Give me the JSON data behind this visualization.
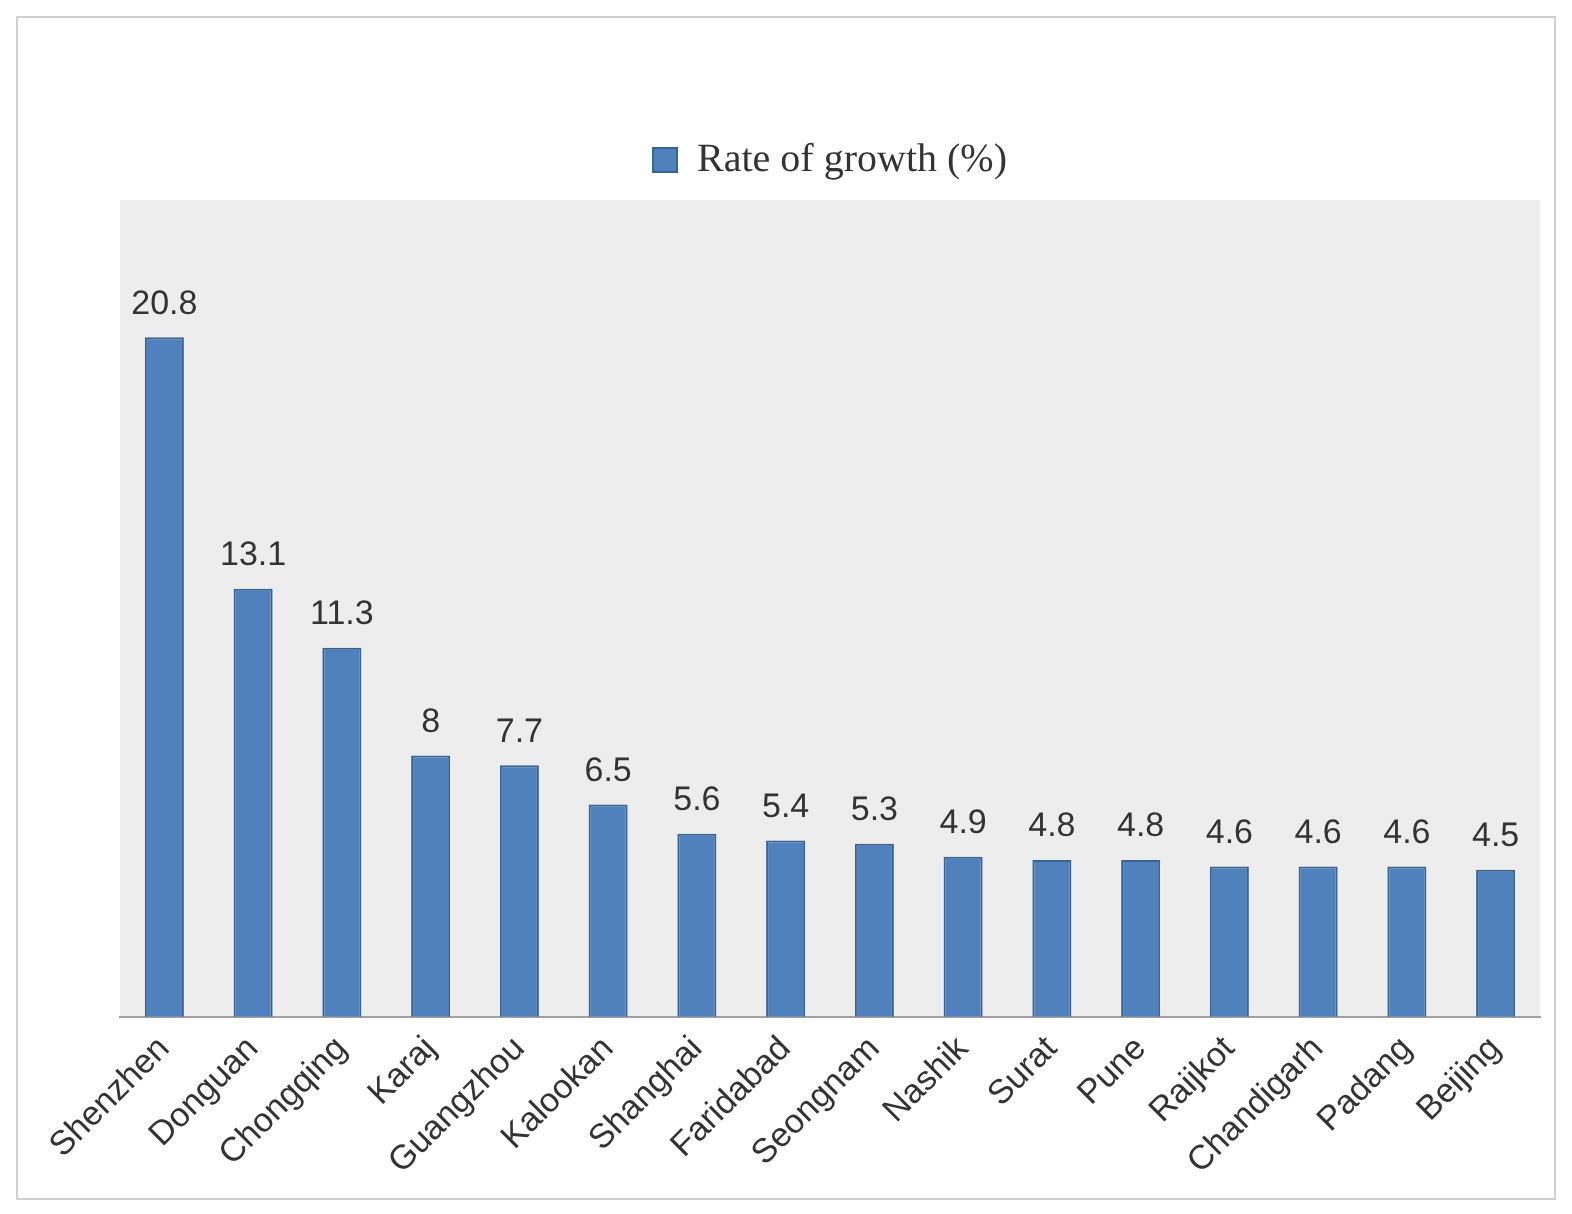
{
  "chart_data": {
    "type": "bar",
    "categories": [
      "Shenzhen",
      "Donguan",
      "Chongqing",
      "Karaj",
      "Guangzhou",
      "Kalookan",
      "Shanghai",
      "Faridabad",
      "Seongnam",
      "Nashik",
      "Surat",
      "Pune",
      "Raijkot",
      "Chandigarh",
      "Padang",
      "Beijing"
    ],
    "series": [
      {
        "name": "Rate of growth (%)",
        "color": "#4f81bd",
        "values": [
          20.8,
          13.1,
          11.3,
          8,
          7.7,
          6.5,
          5.6,
          5.4,
          5.3,
          4.9,
          4.8,
          4.8,
          4.6,
          4.6,
          4.6,
          4.5
        ]
      }
    ],
    "data_labels": true,
    "legend": "top",
    "grid": false
  }
}
